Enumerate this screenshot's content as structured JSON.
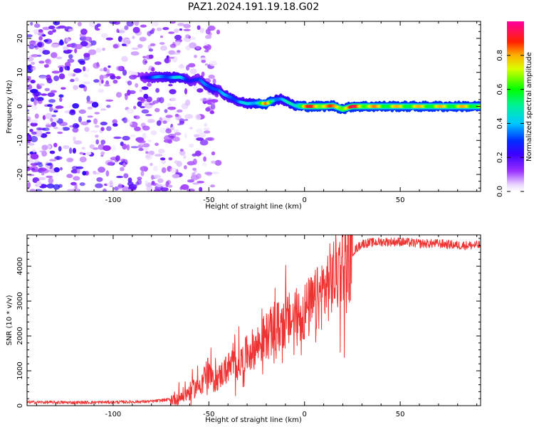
{
  "title": "PAZ1.2024.191.19.18.G02",
  "chart_data": [
    {
      "type": "heatmap",
      "xlabel": "Height of straight line (km)",
      "ylabel": "Frequency (Hz)",
      "xlim": [
        -145,
        92
      ],
      "ylim": [
        -25,
        25
      ],
      "xticks": [
        -100,
        -50,
        0,
        50
      ],
      "yticks": [
        -20,
        -10,
        0,
        10,
        20
      ],
      "colorbar": {
        "label": "Normalized spectral amplitude",
        "range": [
          0,
          1
        ],
        "ticks": [
          0.0,
          0.2,
          0.4,
          0.6,
          0.8
        ],
        "colormap": "rainbow (white-violet-blue-cyan-green-yellow-red-magenta)"
      },
      "ridge": {
        "description": "dominant frequency vs height",
        "x": [
          -85,
          -80,
          -75,
          -70,
          -65,
          -60,
          -55,
          -52,
          -48,
          -45,
          -42,
          -38,
          -35,
          -30,
          -25,
          -20,
          -15,
          -12,
          -8,
          -5,
          0,
          5,
          10,
          15,
          20,
          25,
          30,
          40,
          50,
          60,
          70,
          80,
          92
        ],
        "y": [
          8.5,
          8.5,
          8.8,
          8.5,
          8.6,
          7.5,
          8.0,
          6.5,
          5.2,
          4.8,
          3.5,
          2.5,
          1.5,
          0.8,
          1.0,
          0.8,
          2.0,
          2.2,
          1.0,
          0.2,
          0.0,
          0.0,
          0.0,
          0.2,
          -0.8,
          0.0,
          0.0,
          0.0,
          0.0,
          0.0,
          0.0,
          0.0,
          0.0
        ],
        "amplitude": [
          0.25,
          0.35,
          0.4,
          0.45,
          0.45,
          0.35,
          0.3,
          0.4,
          0.45,
          0.35,
          0.4,
          0.45,
          0.4,
          0.45,
          0.55,
          0.85,
          0.5,
          0.45,
          0.5,
          0.55,
          0.9,
          0.92,
          0.95,
          0.85,
          0.92,
          0.95,
          0.9,
          0.8,
          0.8,
          0.8,
          0.8,
          0.8,
          0.8
        ]
      },
      "noise_region_x": [
        -145,
        -60
      ],
      "noise_amplitude_range": [
        0.02,
        0.25
      ]
    },
    {
      "type": "line",
      "xlabel": "Height of straight line (km)",
      "ylabel": "SNR (10 * v/v)",
      "xlim": [
        -145,
        92
      ],
      "ylim": [
        0,
        4900
      ],
      "xticks": [
        -100,
        -50,
        0,
        50
      ],
      "yticks": [
        0,
        1000,
        2000,
        3000,
        4000
      ],
      "color": "#ee3333",
      "series": [
        {
          "x": [
            -145,
            -120,
            -100,
            -80,
            -70,
            -65,
            -60,
            -55,
            -52,
            -50,
            -48,
            -45,
            -40,
            -35,
            -32,
            -30,
            -25,
            -20,
            -15,
            -10,
            -5,
            0,
            5,
            10,
            15,
            20,
            25,
            30,
            40,
            50,
            60,
            70,
            80,
            92
          ],
          "y": [
            100,
            90,
            100,
            120,
            180,
            250,
            400,
            600,
            900,
            1000,
            700,
            800,
            1100,
            1200,
            1300,
            1500,
            1700,
            2000,
            2200,
            2400,
            2500,
            2700,
            2900,
            3300,
            3700,
            4100,
            4400,
            4650,
            4700,
            4700,
            4650,
            4650,
            4600,
            4600
          ]
        }
      ]
    }
  ]
}
